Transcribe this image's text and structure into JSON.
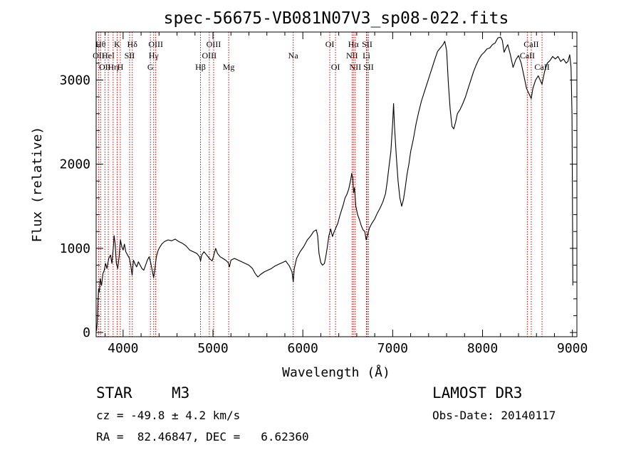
{
  "chart_data": {
    "type": "line",
    "title": "spec-56675-VB081N07V3_sp08-022.fits",
    "xlabel": "Wavelength (Å)",
    "ylabel": "Flux (relative)",
    "xlim": [
      3700,
      9050
    ],
    "ylim": [
      -50,
      3570
    ],
    "xticks": [
      4000,
      5000,
      6000,
      7000,
      8000,
      9000
    ],
    "yticks": [
      0,
      1000,
      2000,
      3000
    ],
    "x_minor_step": 200,
    "y_minor_step": 200,
    "line_color": "#000000",
    "marker_color": "#cc0000",
    "series": [
      {
        "name": "flux",
        "points": [
          [
            3705,
            20
          ],
          [
            3712,
            120
          ],
          [
            3720,
            350
          ],
          [
            3728,
            520
          ],
          [
            3736,
            480
          ],
          [
            3745,
            640
          ],
          [
            3760,
            560
          ],
          [
            3775,
            700
          ],
          [
            3790,
            740
          ],
          [
            3805,
            820
          ],
          [
            3820,
            760
          ],
          [
            3840,
            880
          ],
          [
            3860,
            920
          ],
          [
            3875,
            820
          ],
          [
            3890,
            1000
          ],
          [
            3900,
            1150
          ],
          [
            3912,
            1050
          ],
          [
            3925,
            820
          ],
          [
            3940,
            760
          ],
          [
            3955,
            900
          ],
          [
            3970,
            1100
          ],
          [
            3985,
            1020
          ],
          [
            4000,
            980
          ],
          [
            4015,
            1050
          ],
          [
            4030,
            960
          ],
          [
            4050,
            920
          ],
          [
            4070,
            880
          ],
          [
            4085,
            800
          ],
          [
            4100,
            680
          ],
          [
            4115,
            860
          ],
          [
            4130,
            820
          ],
          [
            4150,
            780
          ],
          [
            4170,
            840
          ],
          [
            4190,
            800
          ],
          [
            4210,
            760
          ],
          [
            4230,
            740
          ],
          [
            4250,
            800
          ],
          [
            4270,
            860
          ],
          [
            4290,
            900
          ],
          [
            4305,
            840
          ],
          [
            4320,
            760
          ],
          [
            4340,
            650
          ],
          [
            4355,
            760
          ],
          [
            4370,
            900
          ],
          [
            4385,
            960
          ],
          [
            4400,
            1000
          ],
          [
            4430,
            1050
          ],
          [
            4460,
            1080
          ],
          [
            4500,
            1100
          ],
          [
            4540,
            1090
          ],
          [
            4580,
            1110
          ],
          [
            4620,
            1080
          ],
          [
            4660,
            1060
          ],
          [
            4700,
            1030
          ],
          [
            4740,
            980
          ],
          [
            4780,
            960
          ],
          [
            4820,
            940
          ],
          [
            4850,
            900
          ],
          [
            4862,
            850
          ],
          [
            4875,
            920
          ],
          [
            4900,
            960
          ],
          [
            4930,
            920
          ],
          [
            4960,
            880
          ],
          [
            4990,
            850
          ],
          [
            5010,
            920
          ],
          [
            5030,
            1000
          ],
          [
            5050,
            940
          ],
          [
            5080,
            900
          ],
          [
            5110,
            880
          ],
          [
            5140,
            860
          ],
          [
            5170,
            830
          ],
          [
            5183,
            780
          ],
          [
            5200,
            860
          ],
          [
            5240,
            880
          ],
          [
            5280,
            860
          ],
          [
            5320,
            840
          ],
          [
            5360,
            820
          ],
          [
            5400,
            800
          ],
          [
            5440,
            760
          ],
          [
            5470,
            700
          ],
          [
            5500,
            660
          ],
          [
            5530,
            690
          ],
          [
            5570,
            720
          ],
          [
            5610,
            740
          ],
          [
            5650,
            760
          ],
          [
            5690,
            790
          ],
          [
            5730,
            810
          ],
          [
            5770,
            830
          ],
          [
            5810,
            850
          ],
          [
            5850,
            790
          ],
          [
            5880,
            720
          ],
          [
            5893,
            600
          ],
          [
            5905,
            760
          ],
          [
            5930,
            880
          ],
          [
            5970,
            960
          ],
          [
            6010,
            1020
          ],
          [
            6050,
            1100
          ],
          [
            6090,
            1150
          ],
          [
            6120,
            1200
          ],
          [
            6150,
            1220
          ],
          [
            6165,
            1150
          ],
          [
            6180,
            940
          ],
          [
            6200,
            830
          ],
          [
            6220,
            800
          ],
          [
            6240,
            820
          ],
          [
            6255,
            900
          ],
          [
            6270,
            1000
          ],
          [
            6290,
            1150
          ],
          [
            6310,
            1230
          ],
          [
            6330,
            1140
          ],
          [
            6350,
            1200
          ],
          [
            6370,
            1250
          ],
          [
            6390,
            1300
          ],
          [
            6410,
            1380
          ],
          [
            6430,
            1450
          ],
          [
            6450,
            1520
          ],
          [
            6470,
            1600
          ],
          [
            6490,
            1640
          ],
          [
            6510,
            1700
          ],
          [
            6530,
            1800
          ],
          [
            6545,
            1890
          ],
          [
            6555,
            1840
          ],
          [
            6565,
            1660
          ],
          [
            6575,
            1720
          ],
          [
            6590,
            1500
          ],
          [
            6610,
            1400
          ],
          [
            6630,
            1340
          ],
          [
            6650,
            1270
          ],
          [
            6670,
            1220
          ],
          [
            6690,
            1200
          ],
          [
            6705,
            1100
          ],
          [
            6720,
            1150
          ],
          [
            6740,
            1240
          ],
          [
            6770,
            1300
          ],
          [
            6800,
            1350
          ],
          [
            6830,
            1420
          ],
          [
            6860,
            1480
          ],
          [
            6890,
            1550
          ],
          [
            6920,
            1650
          ],
          [
            6940,
            1800
          ],
          [
            6960,
            1980
          ],
          [
            6980,
            2150
          ],
          [
            7000,
            2500
          ],
          [
            7010,
            2720
          ],
          [
            7020,
            2450
          ],
          [
            7040,
            2100
          ],
          [
            7060,
            1800
          ],
          [
            7080,
            1600
          ],
          [
            7100,
            1500
          ],
          [
            7120,
            1580
          ],
          [
            7140,
            1720
          ],
          [
            7160,
            1880
          ],
          [
            7180,
            2000
          ],
          [
            7200,
            2150
          ],
          [
            7230,
            2300
          ],
          [
            7260,
            2480
          ],
          [
            7290,
            2620
          ],
          [
            7320,
            2750
          ],
          [
            7350,
            2850
          ],
          [
            7380,
            2950
          ],
          [
            7410,
            3050
          ],
          [
            7440,
            3150
          ],
          [
            7470,
            3250
          ],
          [
            7500,
            3340
          ],
          [
            7530,
            3380
          ],
          [
            7560,
            3420
          ],
          [
            7580,
            3460
          ],
          [
            7600,
            3350
          ],
          [
            7620,
            2950
          ],
          [
            7640,
            2650
          ],
          [
            7660,
            2450
          ],
          [
            7680,
            2420
          ],
          [
            7700,
            2500
          ],
          [
            7720,
            2600
          ],
          [
            7750,
            2650
          ],
          [
            7780,
            2720
          ],
          [
            7810,
            2800
          ],
          [
            7840,
            2900
          ],
          [
            7870,
            3000
          ],
          [
            7900,
            3100
          ],
          [
            7930,
            3180
          ],
          [
            7960,
            3250
          ],
          [
            7990,
            3300
          ],
          [
            8020,
            3330
          ],
          [
            8050,
            3370
          ],
          [
            8080,
            3380
          ],
          [
            8110,
            3420
          ],
          [
            8140,
            3440
          ],
          [
            8170,
            3500
          ],
          [
            8200,
            3510
          ],
          [
            8220,
            3470
          ],
          [
            8240,
            3330
          ],
          [
            8260,
            3380
          ],
          [
            8280,
            3420
          ],
          [
            8310,
            3300
          ],
          [
            8340,
            3150
          ],
          [
            8370,
            3240
          ],
          [
            8400,
            3290
          ],
          [
            8430,
            3200
          ],
          [
            8460,
            3050
          ],
          [
            8490,
            2900
          ],
          [
            8520,
            2830
          ],
          [
            8542,
            2780
          ],
          [
            8560,
            2900
          ],
          [
            8590,
            3000
          ],
          [
            8620,
            3050
          ],
          [
            8662,
            2950
          ],
          [
            8690,
            3100
          ],
          [
            8720,
            3200
          ],
          [
            8750,
            3230
          ],
          [
            8780,
            3280
          ],
          [
            8810,
            3250
          ],
          [
            8840,
            3280
          ],
          [
            8870,
            3220
          ],
          [
            8900,
            3250
          ],
          [
            8930,
            3200
          ],
          [
            8950,
            3220
          ],
          [
            8970,
            3300
          ],
          [
            8985,
            3150
          ],
          [
            8995,
            2600
          ],
          [
            9000,
            1700
          ],
          [
            9005,
            560
          ]
        ]
      }
    ],
    "line_markers": [
      {
        "wavelength": 3727,
        "label": "OII",
        "row": 2
      },
      {
        "wavelength": 3750,
        "label": "Hθ",
        "row": 1
      },
      {
        "wavelength": 3798,
        "label": "OII",
        "row": 3
      },
      {
        "wavelength": 3835,
        "label": "HeI",
        "row": 2
      },
      {
        "wavelength": 3889,
        "label": "Hη",
        "row": 3
      },
      {
        "wavelength": 3934,
        "label": "K",
        "row": 1
      },
      {
        "wavelength": 3969,
        "label": "H",
        "row": 3
      },
      {
        "wavelength": 4072,
        "label": "SII",
        "row": 2
      },
      {
        "wavelength": 4102,
        "label": "Hδ",
        "row": 1
      },
      {
        "wavelength": 4304,
        "label": "G",
        "row": 3
      },
      {
        "wavelength": 4340,
        "label": "Hγ",
        "row": 2
      },
      {
        "wavelength": 4363,
        "label": "OIII",
        "row": 1
      },
      {
        "wavelength": 4861,
        "label": "Hβ",
        "row": 3
      },
      {
        "wavelength": 4959,
        "label": "OIII",
        "row": 2
      },
      {
        "wavelength": 5007,
        "label": "OIII",
        "row": 1
      },
      {
        "wavelength": 5175,
        "label": "Mg",
        "row": 3
      },
      {
        "wavelength": 5893,
        "label": "Na",
        "row": 2
      },
      {
        "wavelength": 6300,
        "label": "OI",
        "row": 1
      },
      {
        "wavelength": 6364,
        "label": "OI",
        "row": 3
      },
      {
        "wavelength": 6548,
        "label": "NII",
        "row": 2
      },
      {
        "wavelength": 6563,
        "label": "Hα",
        "row": 1
      },
      {
        "wavelength": 6583,
        "label": "NII",
        "row": 3
      },
      {
        "wavelength": 6708,
        "label": "Li",
        "row": 2
      },
      {
        "wavelength": 6716,
        "label": "SII",
        "row": 1
      },
      {
        "wavelength": 6731,
        "label": "SII",
        "row": 3
      },
      {
        "wavelength": 8498,
        "label": "CaII",
        "row": 2
      },
      {
        "wavelength": 8542,
        "label": "CaII",
        "row": 1
      },
      {
        "wavelength": 8662,
        "label": "CaII",
        "row": 3
      }
    ]
  },
  "info": {
    "object_class": "STAR",
    "subclass": "M3",
    "survey": "LAMOST DR3",
    "redshift_line": "cz = -49.8 ± 4.2 km/s",
    "obs_date_line": "Obs-Date: 20140117",
    "coords_line": "RA =  82.46847, DEC =   6.62360"
  }
}
